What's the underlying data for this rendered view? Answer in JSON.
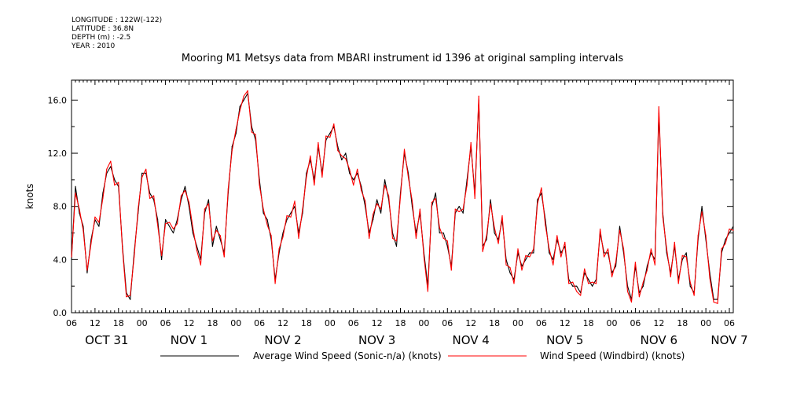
{
  "header": {
    "metadata": [
      "LONGITUDE : 122W(-122)",
      "LATITUDE : 36.8N",
      "DEPTH (m) : -2.5",
      "YEAR : 2010"
    ],
    "title": "Mooring M1 Metsys data from MBARI instrument id 1396 at original sampling intervals"
  },
  "legend": {
    "black_label": "Average Wind Speed (Sonic-n/a) (knots)",
    "red_label": "Wind Speed (Windbird) (knots)"
  },
  "colors": {
    "series_black": "#000000",
    "series_red": "#ff0000"
  },
  "chart_data": {
    "type": "line",
    "title": "Mooring M1 Metsys data from MBARI instrument id 1396 at original sampling intervals",
    "ylabel": "knots",
    "xlabel": "",
    "ylim": [
      0,
      17.5
    ],
    "xlim_hours": [
      0,
      169
    ],
    "x_time_start": "2010-10-31 06:00",
    "y_ticks": [
      "0.0",
      "4.0",
      "8.0",
      "12.0",
      "16.0"
    ],
    "y_tick_values": [
      0,
      4,
      8,
      12,
      16
    ],
    "x_hour_ticks": [
      "06",
      "12",
      "18",
      "00",
      "06",
      "12",
      "18",
      "00",
      "06",
      "12",
      "18",
      "00",
      "06",
      "12",
      "18",
      "00",
      "06",
      "12",
      "18",
      "00",
      "06",
      "12",
      "18",
      "00",
      "06",
      "12",
      "18",
      "00",
      "06"
    ],
    "x_date_labels": [
      {
        "label": "OCT 31",
        "hour": 9
      },
      {
        "label": "NOV  1",
        "hour": 30
      },
      {
        "label": "NOV  2",
        "hour": 54
      },
      {
        "label": "NOV  3",
        "hour": 78
      },
      {
        "label": "NOV  4",
        "hour": 102
      },
      {
        "label": "NOV  5",
        "hour": 126
      },
      {
        "label": "NOV  6",
        "hour": 150
      },
      {
        "label": "NOV  7",
        "hour": 168
      }
    ],
    "legend_position": "bottom",
    "grid": false,
    "x": [
      0,
      1,
      2,
      3,
      4,
      5,
      6,
      7,
      8,
      9,
      10,
      11,
      12,
      13,
      14,
      15,
      16,
      17,
      18,
      19,
      20,
      21,
      22,
      23,
      24,
      25,
      26,
      27,
      28,
      29,
      30,
      31,
      32,
      33,
      34,
      35,
      36,
      37,
      38,
      39,
      40,
      41,
      42,
      43,
      44,
      45,
      46,
      47,
      48,
      49,
      50,
      51,
      52,
      53,
      54,
      55,
      56,
      57,
      58,
      59,
      60,
      61,
      62,
      63,
      64,
      65,
      66,
      67,
      68,
      69,
      70,
      71,
      72,
      73,
      74,
      75,
      76,
      77,
      78,
      79,
      80,
      81,
      82,
      83,
      84,
      85,
      86,
      87,
      88,
      89,
      90,
      91,
      92,
      93,
      94,
      95,
      96,
      97,
      98,
      99,
      100,
      101,
      102,
      103,
      104,
      105,
      106,
      107,
      108,
      109,
      110,
      111,
      112,
      113,
      114,
      115,
      116,
      117,
      118,
      119,
      120,
      121,
      122,
      123,
      124,
      125,
      126,
      127,
      128,
      129,
      130,
      131,
      132,
      133,
      134,
      135,
      136,
      137,
      138,
      139,
      140,
      141,
      142,
      143,
      144,
      145,
      146,
      147,
      148,
      149,
      150,
      151,
      152,
      153,
      154,
      155,
      156,
      157,
      158,
      159,
      160,
      161,
      162,
      163,
      164,
      165,
      166,
      167,
      168,
      169
    ],
    "series": [
      {
        "name": "Average Wind Speed (Sonic-n/a) (knots)",
        "color": "#000000",
        "values": [
          4.0,
          9.5,
          7.5,
          6.5,
          3.0,
          5.5,
          7.0,
          6.5,
          9.0,
          10.5,
          11.0,
          10.0,
          9.5,
          5.0,
          1.5,
          1.0,
          4.5,
          7.5,
          10.5,
          10.5,
          9.0,
          8.5,
          7.0,
          4.0,
          7.0,
          6.5,
          6.0,
          7.0,
          8.5,
          9.5,
          8.0,
          6.0,
          5.0,
          4.0,
          7.5,
          8.5,
          5.0,
          6.5,
          5.5,
          4.5,
          9.0,
          12.5,
          13.5,
          15.5,
          16.0,
          16.5,
          14.0,
          13.0,
          10.0,
          7.5,
          7.0,
          5.5,
          2.5,
          4.5,
          6.0,
          7.0,
          7.5,
          8.0,
          6.0,
          7.5,
          10.5,
          11.5,
          10.0,
          12.5,
          10.5,
          13.0,
          13.5,
          14.0,
          12.5,
          11.5,
          12.0,
          10.5,
          10.0,
          10.5,
          9.5,
          8.0,
          6.0,
          7.0,
          8.5,
          7.5,
          10.0,
          8.5,
          6.0,
          5.0,
          9.0,
          12.0,
          10.5,
          8.0,
          6.0,
          7.5,
          4.5,
          2.0,
          8.0,
          9.0,
          6.0,
          6.0,
          5.0,
          3.5,
          7.5,
          8.0,
          7.5,
          10.0,
          12.5,
          9.0,
          16.0,
          5.0,
          5.5,
          8.5,
          6.0,
          5.5,
          7.0,
          4.0,
          3.0,
          2.5,
          4.5,
          3.5,
          4.0,
          4.5,
          4.5,
          8.5,
          9.0,
          7.0,
          4.5,
          4.0,
          5.5,
          4.5,
          5.0,
          2.5,
          2.0,
          2.0,
          1.5,
          3.0,
          2.5,
          2.0,
          2.5,
          6.0,
          4.5,
          4.5,
          3.0,
          3.5,
          6.5,
          4.5,
          2.0,
          1.0,
          3.5,
          1.5,
          2.0,
          3.5,
          4.5,
          4.0,
          15.0,
          7.5,
          4.5,
          3.0,
          5.0,
          2.5,
          4.0,
          4.5,
          2.0,
          1.5,
          5.5,
          8.0,
          5.5,
          3.0,
          1.0,
          1.0,
          4.5,
          5.5,
          6.0,
          6.5
        ],
        "style": "solid"
      },
      {
        "name": "Wind Speed (Windbird) (knots)",
        "color": "#ff0000",
        "values": [
          4.2,
          9.0,
          7.8,
          6.2,
          3.2,
          5.2,
          7.2,
          6.8,
          8.6,
          10.8,
          11.4,
          9.6,
          9.8,
          4.8,
          1.2,
          1.3,
          4.2,
          7.8,
          10.2,
          10.8,
          8.6,
          8.8,
          6.6,
          4.3,
          6.7,
          6.8,
          6.3,
          6.7,
          8.8,
          9.2,
          8.3,
          6.4,
          4.7,
          3.6,
          7.8,
          8.2,
          5.4,
          6.2,
          5.8,
          4.2,
          9.3,
          12.2,
          13.8,
          15.2,
          16.3,
          16.7,
          13.6,
          13.4,
          9.6,
          7.8,
          6.6,
          5.8,
          2.2,
          4.8,
          5.7,
          7.3,
          7.2,
          8.4,
          5.6,
          7.8,
          10.2,
          11.8,
          9.6,
          12.8,
          10.2,
          13.3,
          13.2,
          14.2,
          12.2,
          11.8,
          11.6,
          10.8,
          9.6,
          10.8,
          9.2,
          8.4,
          5.6,
          7.4,
          8.2,
          7.8,
          9.6,
          8.8,
          5.6,
          5.4,
          8.7,
          12.3,
          10.2,
          8.4,
          5.6,
          7.8,
          4.2,
          1.6,
          8.3,
          8.6,
          6.4,
          5.6,
          5.4,
          3.2,
          7.8,
          7.6,
          7.8,
          9.6,
          12.8,
          8.6,
          16.3,
          4.6,
          5.8,
          8.2,
          6.4,
          5.2,
          7.3,
          3.6,
          3.4,
          2.2,
          4.8,
          3.2,
          4.3,
          4.2,
          4.8,
          8.2,
          9.4,
          6.6,
          4.8,
          3.6,
          5.8,
          4.2,
          5.3,
          2.2,
          2.3,
          1.6,
          1.3,
          3.3,
          2.2,
          2.3,
          2.2,
          6.3,
          4.2,
          4.8,
          2.7,
          3.8,
          6.2,
          4.8,
          1.6,
          0.8,
          3.8,
          1.2,
          2.3,
          3.2,
          4.8,
          3.6,
          15.5,
          7.2,
          4.8,
          2.7,
          5.3,
          2.2,
          4.3,
          4.2,
          2.3,
          1.3,
          5.8,
          7.6,
          5.8,
          2.6,
          0.8,
          0.7,
          4.8,
          5.2,
          6.3,
          6.2
        ],
        "style": "solid"
      }
    ]
  }
}
